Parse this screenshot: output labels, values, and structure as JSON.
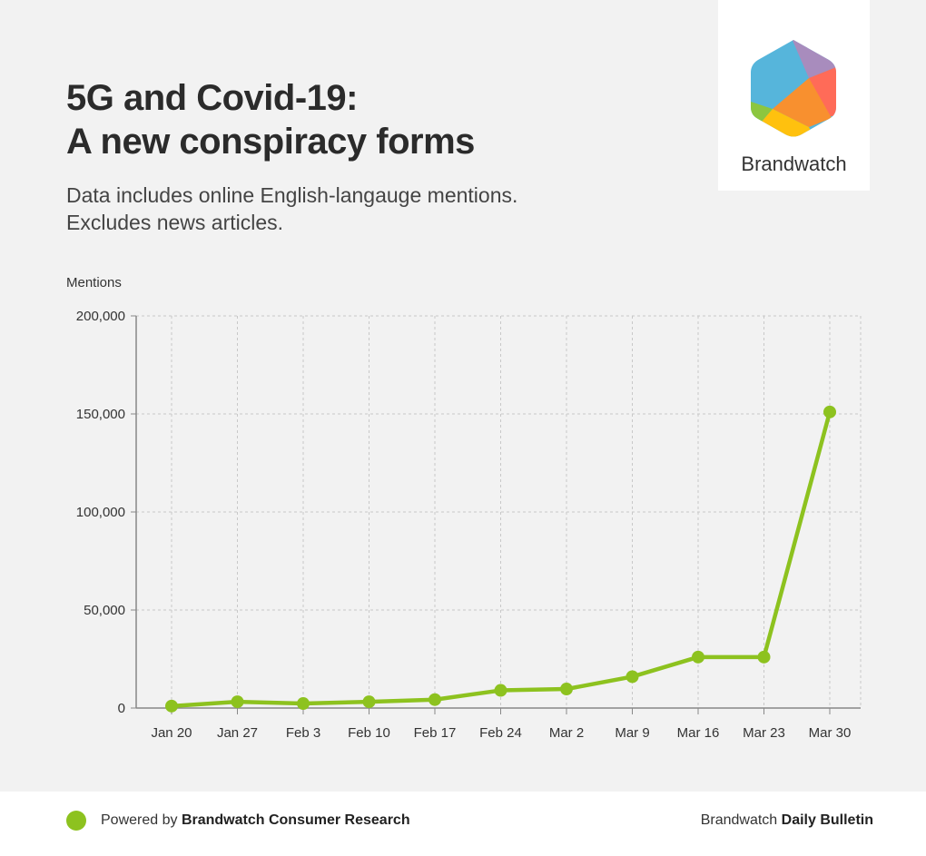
{
  "header": {
    "title_line1": "5G and Covid-19:",
    "title_line2": "A new conspiracy forms",
    "subtitle_line1": "Data includes online English-langauge mentions.",
    "subtitle_line2": "Excludes news articles."
  },
  "logo": {
    "text": "Brandwatch"
  },
  "footer": {
    "powered_prefix": "Powered by",
    "powered_brand": "Brandwatch Consumer Research",
    "right_prefix": "Brandwatch",
    "right_bold": "Daily Bulletin",
    "dot_color": "#8dc21f"
  },
  "chart_data": {
    "type": "line",
    "title": "5G and Covid-19: A new conspiracy forms",
    "xlabel": "",
    "ylabel": "Mentions",
    "categories": [
      "Jan 20",
      "Jan 27",
      "Feb 3",
      "Feb 10",
      "Feb 17",
      "Feb 24",
      "Mar 2",
      "Mar 9",
      "Mar 16",
      "Mar 23",
      "Mar 30"
    ],
    "series": [
      {
        "name": "Mentions",
        "color": "#8dc21f",
        "values": [
          1000,
          3200,
          2300,
          3200,
          4300,
          9000,
          9700,
          16000,
          26000,
          26000,
          151000
        ]
      }
    ],
    "ylim": [
      0,
      200000
    ],
    "yticks": [
      0,
      50000,
      100000,
      150000,
      200000
    ],
    "ytick_labels": [
      "0",
      "50,000",
      "100,000",
      "150,000",
      "200,000"
    ],
    "grid": true,
    "legend": "none"
  }
}
